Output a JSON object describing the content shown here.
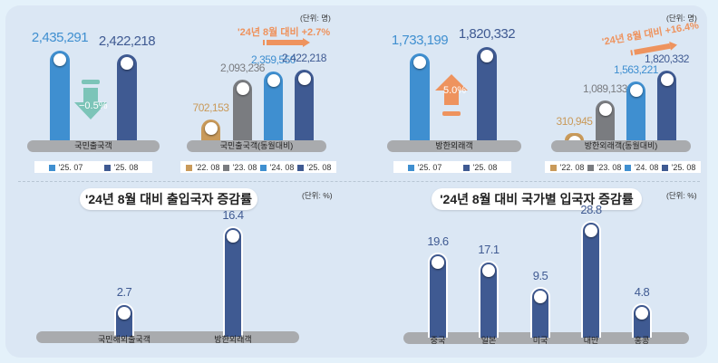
{
  "colors": {
    "c2507": "#3f8fd0",
    "c2508": "#3f5a92",
    "c2208": "#c99a5a",
    "c2308": "#7a7c80",
    "c2408": "#3f8fd0",
    "orange": "#ee935e",
    "teal": "#7cc4b8"
  },
  "unit_people": "(단위: 명)",
  "unit_percent": "(단위: %)",
  "chart_data": [
    {
      "id": "c1",
      "type": "bar",
      "category": "국민출국객",
      "series": [
        {
          "name": "'25. 07",
          "value": 2435291,
          "label": "2,435,291",
          "color": "#3f8fd0"
        },
        {
          "name": "'25. 08",
          "value": 2422218,
          "label": "2,422,218",
          "color": "#3f5a92"
        }
      ],
      "change": "−0.5%",
      "change_direction": "down"
    },
    {
      "id": "c2",
      "type": "bar",
      "category": "국민출국객(동월대비)",
      "series": [
        {
          "name": "'22. 08",
          "value": 702153,
          "label": "702,153",
          "color": "#c99a5a"
        },
        {
          "name": "'23. 08",
          "value": 2093236,
          "label": "2,093,236",
          "color": "#7a7c80"
        },
        {
          "name": "'24. 08",
          "value": 2359550,
          "label": "2,359,550",
          "color": "#3f8fd0"
        },
        {
          "name": "'25. 08",
          "value": 2422218,
          "label": "2,422,218",
          "color": "#3f5a92"
        }
      ],
      "annotation": "'24년 8월 대비 +2.7%"
    },
    {
      "id": "c3",
      "type": "bar",
      "category": "방한외래객",
      "series": [
        {
          "name": "'25. 07",
          "value": 1733199,
          "label": "1,733,199",
          "color": "#3f8fd0"
        },
        {
          "name": "'25. 08",
          "value": 1820332,
          "label": "1,820,332",
          "color": "#3f5a92"
        }
      ],
      "change": "5.0%",
      "change_direction": "up"
    },
    {
      "id": "c4",
      "type": "bar",
      "category": "방한외래객(동월대비)",
      "series": [
        {
          "name": "'22. 08",
          "value": 310945,
          "label": "310,945",
          "color": "#c99a5a"
        },
        {
          "name": "'23. 08",
          "value": 1089133,
          "label": "1,089,133",
          "color": "#7a7c80"
        },
        {
          "name": "'24. 08",
          "value": 1563221,
          "label": "1,563,221",
          "color": "#3f8fd0"
        },
        {
          "name": "'25. 08",
          "value": 1820332,
          "label": "1,820,332",
          "color": "#3f5a92"
        }
      ],
      "annotation": "'24년 8월 대비 +16.4%"
    },
    {
      "id": "c5",
      "type": "bar",
      "title": "'24년 8월 대비 출입국자 증감률",
      "ylabel": "%",
      "categories": [
        "국민해외출국객",
        "방한외래객"
      ],
      "values": [
        2.7,
        16.4
      ],
      "labels": [
        "2.7",
        "16.4"
      ]
    },
    {
      "id": "c6",
      "type": "bar",
      "title": "'24년 8월 대비 국가별 입국자 증감률",
      "ylabel": "%",
      "categories": [
        "중국",
        "일본",
        "미국",
        "대만",
        "홍콩"
      ],
      "values": [
        19.6,
        17.1,
        9.5,
        28.8,
        4.8
      ],
      "labels": [
        "19.6",
        "17.1",
        "9.5",
        "28.8",
        "4.8"
      ]
    }
  ]
}
